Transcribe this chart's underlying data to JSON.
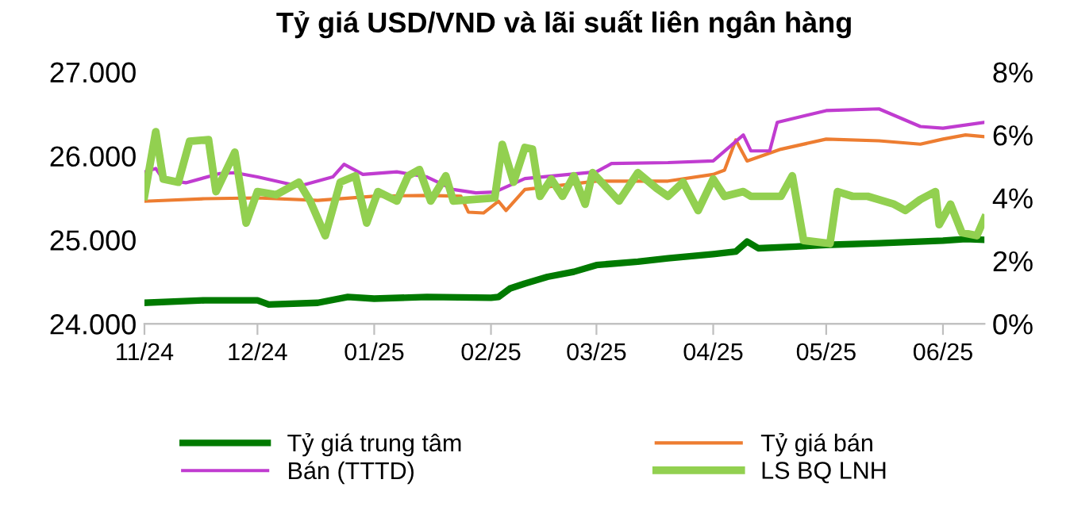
{
  "chart_data": {
    "type": "line",
    "title": "Tỷ giá USD/VND và lãi suất liên ngân hàng",
    "xlim": [
      "2024-11-01",
      "2025-06-12"
    ],
    "xticks": [
      {
        "value": "2024-11-01",
        "label": "11/24"
      },
      {
        "value": "2024-12-01",
        "label": "12/24"
      },
      {
        "value": "2025-01-01",
        "label": "01/25"
      },
      {
        "value": "2025-02-01",
        "label": "02/25"
      },
      {
        "value": "2025-03-01",
        "label": "03/25"
      },
      {
        "value": "2025-04-01",
        "label": "04/25"
      },
      {
        "value": "2025-05-01",
        "label": "05/25"
      },
      {
        "value": "2025-06-01",
        "label": "06/25"
      }
    ],
    "ylim": [
      24000,
      27000
    ],
    "yticks": [
      {
        "value": 24000,
        "label": "24.000"
      },
      {
        "value": 25000,
        "label": "25.000"
      },
      {
        "value": 26000,
        "label": "26.000"
      },
      {
        "value": 27000,
        "label": "27.000"
      }
    ],
    "y2lim": [
      0,
      8
    ],
    "y2ticks": [
      {
        "value": 0,
        "label": "0%"
      },
      {
        "value": 2,
        "label": "2%"
      },
      {
        "value": 4,
        "label": "4%"
      },
      {
        "value": 6,
        "label": "6%"
      },
      {
        "value": 8,
        "label": "8%"
      }
    ],
    "grid": false,
    "legend": "bottom",
    "marker": "none",
    "line_style": "solid",
    "series": [
      {
        "name": "Tỷ giá trung tâm",
        "color": "#007a00",
        "x": [
          "2024-11-01",
          "2024-11-17",
          "2024-12-01",
          "2024-12-04",
          "2024-12-17",
          "2024-12-25",
          "2025-01-01",
          "2025-01-15",
          "2025-02-01",
          "2025-02-03",
          "2025-02-06",
          "2025-02-10",
          "2025-02-16",
          "2025-02-23",
          "2025-03-01",
          "2025-03-12",
          "2025-03-20",
          "2025-04-01",
          "2025-04-07",
          "2025-04-10",
          "2025-04-13",
          "2025-04-23",
          "2025-05-01",
          "2025-05-15",
          "2025-06-01",
          "2025-06-07",
          "2025-06-12"
        ],
        "values": [
          24250,
          24280,
          24280,
          24230,
          24250,
          24320,
          24300,
          24320,
          24310,
          24320,
          24420,
          24480,
          24560,
          24620,
          24700,
          24740,
          24780,
          24830,
          24860,
          24980,
          24900,
          24920,
          24940,
          24960,
          24990,
          25010,
          25000
        ]
      },
      {
        "name": "Tỷ giá bán",
        "color": "#ed7d31",
        "x": [
          "2024-11-01",
          "2024-11-17",
          "2024-12-01",
          "2024-12-17",
          "2025-01-01",
          "2025-01-15",
          "2025-01-24",
          "2025-01-26",
          "2025-01-30",
          "2025-02-03",
          "2025-02-05",
          "2025-02-10",
          "2025-03-01",
          "2025-03-20",
          "2025-04-01",
          "2025-04-04",
          "2025-04-07",
          "2025-04-10",
          "2025-04-19",
          "2025-05-01",
          "2025-05-15",
          "2025-05-26",
          "2025-06-01",
          "2025-06-07",
          "2025-06-12"
        ],
        "values": [
          25460,
          25490,
          25500,
          25470,
          25520,
          25530,
          25520,
          25330,
          25320,
          25460,
          25350,
          25600,
          25700,
          25700,
          25780,
          25830,
          26190,
          25940,
          26080,
          26200,
          26180,
          26140,
          26200,
          26250,
          26230
        ]
      },
      {
        "name": "Bán (TTTD)",
        "color": "#c03cd0",
        "x": [
          "2024-11-01",
          "2024-11-04",
          "2024-11-06",
          "2024-11-12",
          "2024-11-21",
          "2024-11-25",
          "2024-12-01",
          "2024-12-12",
          "2024-12-21",
          "2024-12-24",
          "2024-12-29",
          "2025-01-07",
          "2025-01-15",
          "2025-01-22",
          "2025-01-28",
          "2025-02-02",
          "2025-02-10",
          "2025-03-01",
          "2025-03-05",
          "2025-03-20",
          "2025-04-01",
          "2025-04-09",
          "2025-04-11",
          "2025-04-16",
          "2025-04-18",
          "2025-05-01",
          "2025-05-15",
          "2025-05-26",
          "2025-06-01",
          "2025-06-12"
        ],
        "values": [
          25810,
          25850,
          25720,
          25680,
          25790,
          25800,
          25750,
          25640,
          25750,
          25900,
          25780,
          25810,
          25750,
          25600,
          25560,
          25570,
          25730,
          25810,
          25910,
          25920,
          25940,
          26250,
          26060,
          26060,
          26400,
          26540,
          26560,
          26350,
          26330,
          26400
        ]
      },
      {
        "name": "LS BQ LNH",
        "color": "#92d050",
        "axis": "y2",
        "x": [
          "2024-11-01",
          "2024-11-04",
          "2024-11-06",
          "2024-11-10",
          "2024-11-13",
          "2024-11-18",
          "2024-11-20",
          "2024-11-25",
          "2024-11-28",
          "2024-12-01",
          "2024-12-06",
          "2024-12-12",
          "2024-12-15",
          "2024-12-19",
          "2024-12-23",
          "2024-12-27",
          "2024-12-30",
          "2025-01-02",
          "2025-01-07",
          "2025-01-10",
          "2025-01-13",
          "2025-01-16",
          "2025-01-20",
          "2025-01-22",
          "2025-02-02",
          "2025-02-04",
          "2025-02-07",
          "2025-02-10",
          "2025-02-12",
          "2025-02-14",
          "2025-02-17",
          "2025-02-20",
          "2025-02-23",
          "2025-02-26",
          "2025-02-28",
          "2025-03-07",
          "2025-03-12",
          "2025-03-17",
          "2025-03-20",
          "2025-03-24",
          "2025-03-28",
          "2025-04-01",
          "2025-04-04",
          "2025-04-09",
          "2025-04-11",
          "2025-04-19",
          "2025-04-22",
          "2025-04-25",
          "2025-05-02",
          "2025-05-04",
          "2025-05-08",
          "2025-05-12",
          "2025-05-19",
          "2025-05-22",
          "2025-05-26",
          "2025-05-30",
          "2025-05-31",
          "2025-06-03",
          "2025-06-06",
          "2025-06-10",
          "2025-06-12"
        ],
        "values": [
          4.05,
          6.1,
          4.6,
          4.5,
          5.8,
          5.85,
          4.2,
          5.45,
          3.2,
          4.2,
          4.1,
          4.5,
          3.9,
          2.8,
          4.5,
          4.7,
          3.2,
          4.2,
          3.9,
          4.7,
          4.9,
          3.9,
          4.7,
          3.9,
          4.0,
          5.7,
          4.5,
          5.6,
          5.55,
          4.05,
          4.6,
          4.05,
          4.7,
          3.8,
          4.8,
          3.9,
          4.8,
          4.3,
          4.05,
          4.5,
          3.6,
          4.6,
          4.05,
          4.2,
          4.05,
          4.05,
          4.7,
          2.65,
          2.55,
          4.2,
          4.05,
          4.05,
          3.8,
          3.6,
          3.95,
          4.2,
          3.15,
          3.8,
          2.9,
          2.8,
          3.35
        ]
      }
    ]
  }
}
